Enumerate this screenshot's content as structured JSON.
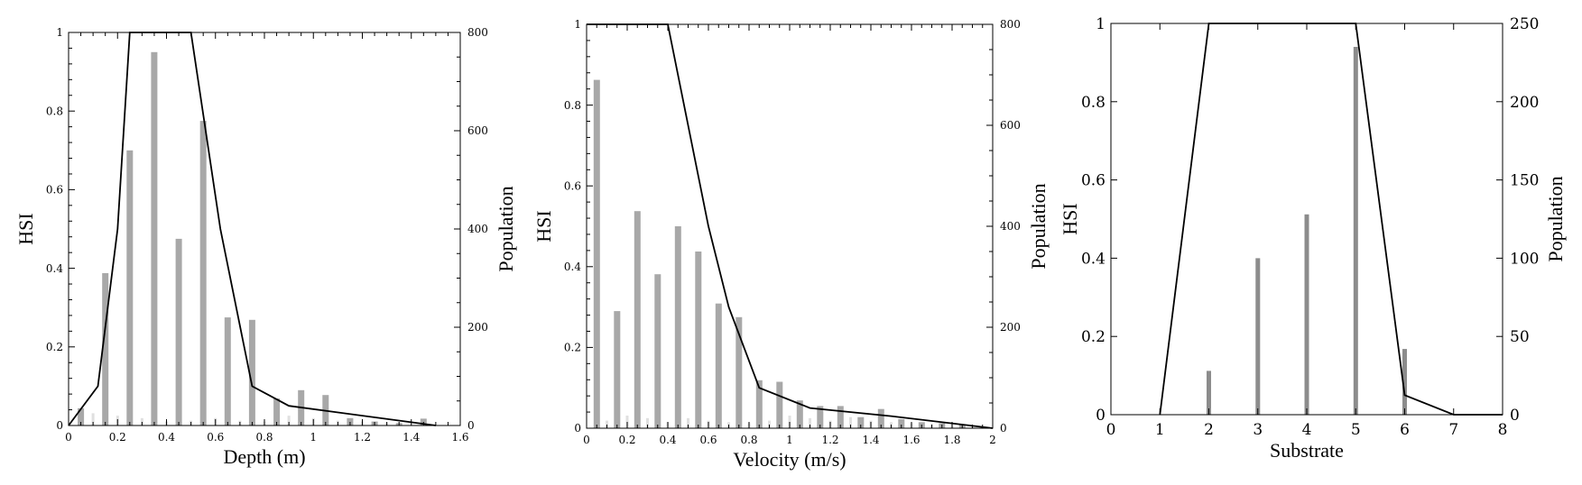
{
  "chart_data": [
    {
      "type": "bar",
      "xlabel": "Depth (m)",
      "ylabel": "HSI",
      "y2label": "Population",
      "xlim": [
        0,
        1.6
      ],
      "ylim": [
        0,
        1
      ],
      "y2lim": [
        0,
        800
      ],
      "xticks": [
        "0",
        "0.2",
        "0.4",
        "0.6",
        "0.8",
        "1",
        "1.2",
        "1.4",
        "1.6"
      ],
      "yticks": [
        "0",
        "0.2",
        "0.4",
        "0.6",
        "0.8",
        "1"
      ],
      "y2ticks": [
        "0",
        "200",
        "400",
        "600",
        "800"
      ],
      "grid": false,
      "series": [
        {
          "axis": "y2",
          "kind": "bar",
          "color": "#a8a8a8",
          "x": [
            0.05,
            0.15,
            0.25,
            0.35,
            0.45,
            0.55,
            0.65,
            0.75,
            0.85,
            0.95,
            1.05,
            1.15,
            1.25,
            1.35,
            1.45
          ],
          "values": [
            35,
            310,
            560,
            760,
            380,
            620,
            220,
            215,
            55,
            72,
            62,
            15,
            8,
            5,
            14
          ]
        },
        {
          "axis": "y2",
          "kind": "bar",
          "color": "#e0e0e0",
          "x": [
            0.1,
            0.2,
            0.3,
            0.4,
            0.5,
            0.6,
            0.7,
            0.8,
            0.9,
            1.0,
            1.1,
            1.2,
            1.3
          ],
          "values": [
            25,
            20,
            15,
            8,
            10,
            15,
            10,
            8,
            20,
            15,
            10,
            8,
            6
          ]
        },
        {
          "axis": "y",
          "kind": "line",
          "color": "#000000",
          "x": [
            0,
            0.12,
            0.2,
            0.25,
            0.5,
            0.62,
            0.75,
            0.9,
            1.5
          ],
          "values": [
            0,
            0.1,
            0.5,
            1,
            1,
            0.5,
            0.1,
            0.05,
            0
          ]
        }
      ]
    },
    {
      "type": "bar",
      "xlabel": "Velocity (m/s)",
      "ylabel": "HSI",
      "y2label": "Population",
      "xlim": [
        0,
        2
      ],
      "ylim": [
        0,
        1
      ],
      "y2lim": [
        0,
        800
      ],
      "xticks": [
        "0",
        "0.2",
        "0.4",
        "0.6",
        "0.8",
        "1",
        "1.2",
        "1.4",
        "1.6",
        "1.8",
        "2"
      ],
      "yticks": [
        "0",
        "0.2",
        "0.4",
        "0.6",
        "0.8",
        "1"
      ],
      "y2ticks": [
        "0",
        "200",
        "400",
        "600",
        "800"
      ],
      "grid": false,
      "series": [
        {
          "axis": "y2",
          "kind": "bar",
          "color": "#a8a8a8",
          "x": [
            0.05,
            0.15,
            0.25,
            0.35,
            0.45,
            0.55,
            0.65,
            0.75,
            0.85,
            0.95,
            1.05,
            1.15,
            1.25,
            1.35,
            1.45,
            1.55,
            1.65,
            1.75,
            1.85
          ],
          "values": [
            690,
            232,
            430,
            305,
            400,
            350,
            247,
            220,
            95,
            92,
            55,
            44,
            44,
            22,
            38,
            18,
            12,
            10,
            7
          ]
        },
        {
          "axis": "y2",
          "kind": "bar",
          "color": "#e0e0e0",
          "x": [
            0.1,
            0.2,
            0.3,
            0.4,
            0.5,
            0.6,
            0.7,
            0.8,
            0.9,
            1.0,
            1.1,
            1.2,
            1.3,
            1.4,
            1.5,
            1.6,
            1.7,
            1.8,
            1.9
          ],
          "values": [
            15,
            25,
            20,
            12,
            20,
            15,
            12,
            10,
            15,
            25,
            20,
            15,
            22,
            15,
            12,
            10,
            8,
            6,
            5
          ]
        },
        {
          "axis": "y",
          "kind": "line",
          "color": "#000000",
          "x": [
            0,
            0.4,
            0.6,
            0.7,
            0.85,
            1.1,
            1.5,
            2
          ],
          "values": [
            1,
            1,
            0.5,
            0.3,
            0.1,
            0.05,
            0.03,
            0
          ]
        }
      ]
    },
    {
      "type": "bar",
      "xlabel": "Substrate",
      "ylabel": "HSI",
      "y2label": "Population",
      "xlim": [
        0,
        8
      ],
      "ylim": [
        0,
        1
      ],
      "y2lim": [
        0,
        250
      ],
      "xticks": [
        "0",
        "1",
        "2",
        "3",
        "4",
        "5",
        "6",
        "7",
        "8"
      ],
      "yticks": [
        "0",
        "0.2",
        "0.4",
        "0.6",
        "0.8",
        "1"
      ],
      "y2ticks": [
        "0",
        "50",
        "100",
        "150",
        "200",
        "250"
      ],
      "grid": false,
      "series": [
        {
          "axis": "y2",
          "kind": "bar",
          "color": "#8c8c8c",
          "x": [
            2,
            3,
            4,
            5,
            6
          ],
          "values": [
            28,
            100,
            128,
            235,
            42
          ]
        },
        {
          "axis": "y",
          "kind": "line",
          "color": "#000000",
          "x": [
            1,
            2,
            5,
            6,
            7,
            8
          ],
          "values": [
            0,
            1,
            1,
            0.05,
            0,
            0
          ]
        }
      ]
    }
  ]
}
